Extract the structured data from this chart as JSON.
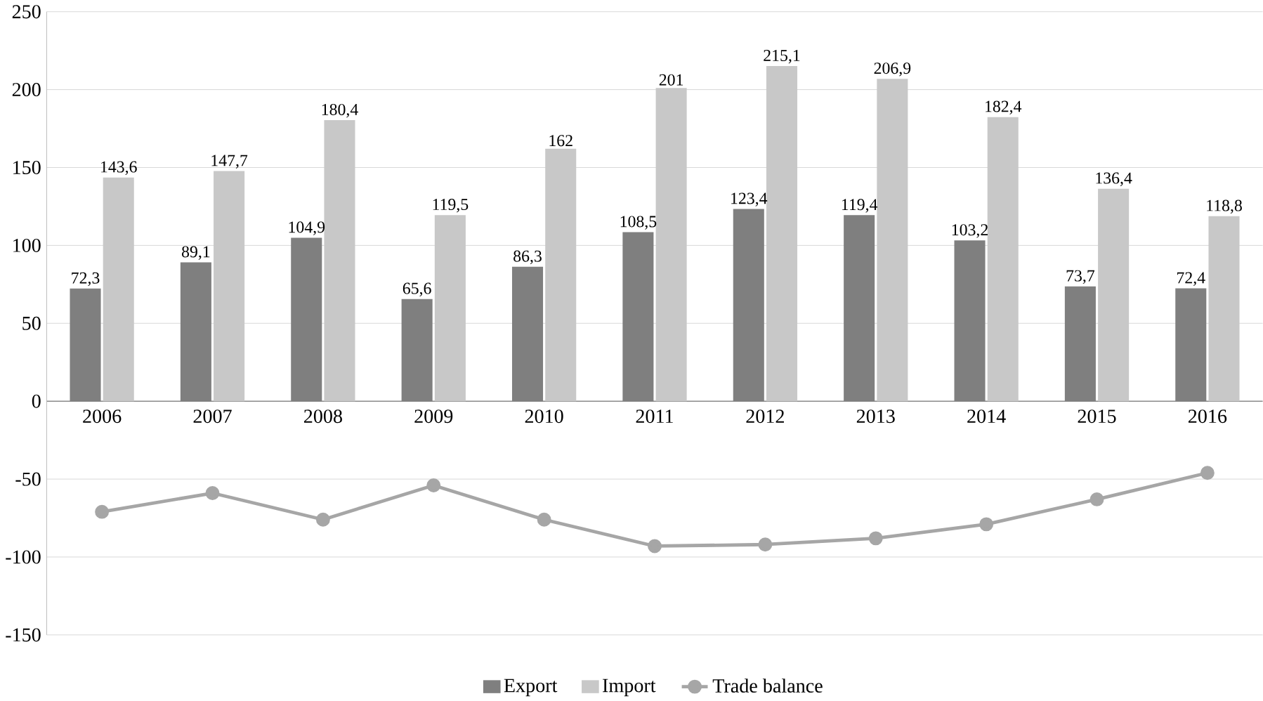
{
  "chart_data": {
    "type": "bar",
    "categories": [
      "2006",
      "2007",
      "2008",
      "2009",
      "2010",
      "2011",
      "2012",
      "2013",
      "2014",
      "2015",
      "2016"
    ],
    "series": [
      {
        "name": "Export",
        "color": "#7f7f7f",
        "values": [
          72.3,
          89.1,
          104.9,
          65.6,
          86.3,
          108.5,
          123.4,
          119.4,
          103.2,
          73.7,
          72.4
        ],
        "value_labels": [
          "72,3",
          "89,1",
          "104,9",
          "65,6",
          "86,3",
          "108,5",
          "123,4",
          "119,4",
          "103,2",
          "73,7",
          "72,4"
        ]
      },
      {
        "name": "Import",
        "color": "#c8c8c8",
        "values": [
          143.6,
          147.7,
          180.4,
          119.5,
          162,
          201,
          215.1,
          206.9,
          182.4,
          136.4,
          118.8
        ],
        "value_labels": [
          "143,6",
          "147,7",
          "180,4",
          "119,5",
          "162",
          "201",
          "215,1",
          "206,9",
          "182,4",
          "136,4",
          "118,8"
        ]
      },
      {
        "name": "Trade balance",
        "type": "line",
        "color": "#a6a6a6",
        "marker": "circle",
        "values": [
          -71,
          -59,
          -76,
          -54,
          -76,
          -93,
          -92,
          -88,
          -79,
          -63,
          -46
        ]
      }
    ],
    "ylim": [
      -150,
      250
    ],
    "yticks": [
      -150,
      -100,
      -50,
      0,
      50,
      100,
      150,
      200,
      250
    ],
    "grid": "y",
    "legend": "bottom"
  }
}
